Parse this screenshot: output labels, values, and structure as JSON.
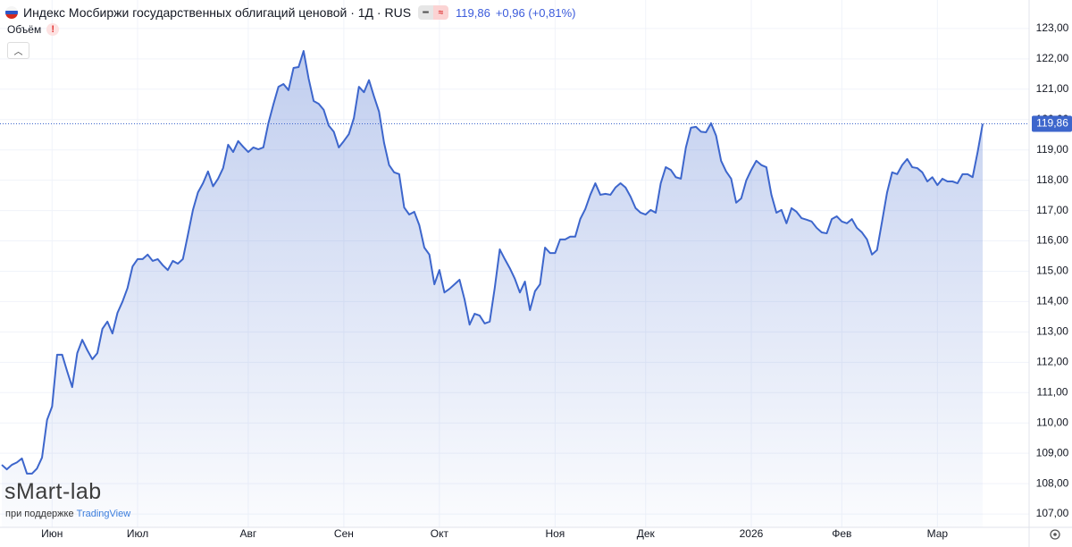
{
  "chart_data": {
    "type": "area",
    "title": "Индекс Мосбиржи государственных облигаций ценовой · 1Д · RUS",
    "change": "+0,96 (+0,81%)",
    "volume_label": "Объём",
    "volume_alert": "!",
    "watermark": "sMart-lab",
    "watermark_sub": "при поддержке",
    "watermark_brand": "TradingView",
    "color": "#3d66cc",
    "grid": true,
    "last_value": {
      "value": 119.86,
      "label": "119,86"
    },
    "ylim": [
      106.56,
      123.94
    ],
    "yticks": [
      {
        "value": 107,
        "label": "107,00"
      },
      {
        "value": 108,
        "label": "108,00"
      },
      {
        "value": 109,
        "label": "109,00"
      },
      {
        "value": 110,
        "label": "110,00"
      },
      {
        "value": 111,
        "label": "111,00"
      },
      {
        "value": 112,
        "label": "112,00"
      },
      {
        "value": 113,
        "label": "113,00"
      },
      {
        "value": 114,
        "label": "114,00"
      },
      {
        "value": 115,
        "label": "115,00"
      },
      {
        "value": 116,
        "label": "116,00"
      },
      {
        "value": 117,
        "label": "117,00"
      },
      {
        "value": 118,
        "label": "118,00"
      },
      {
        "value": 119,
        "label": "119,00"
      },
      {
        "value": 120,
        "label": "120,00"
      },
      {
        "value": 121,
        "label": "121,00"
      },
      {
        "value": 122,
        "label": "122,00"
      },
      {
        "value": 123,
        "label": "123,00"
      }
    ],
    "categories": [
      null,
      null,
      null,
      null,
      null,
      null,
      null,
      null,
      null,
      null,
      "Июн",
      null,
      null,
      null,
      null,
      null,
      null,
      null,
      null,
      null,
      null,
      null,
      null,
      null,
      null,
      null,
      null,
      "Июл",
      null,
      null,
      null,
      null,
      null,
      null,
      null,
      null,
      null,
      null,
      null,
      null,
      null,
      null,
      null,
      null,
      null,
      null,
      null,
      null,
      null,
      "Авг",
      null,
      null,
      null,
      null,
      null,
      null,
      null,
      null,
      null,
      null,
      null,
      null,
      null,
      null,
      null,
      null,
      null,
      null,
      "Сен",
      null,
      null,
      null,
      null,
      null,
      null,
      null,
      null,
      null,
      null,
      null,
      null,
      null,
      null,
      null,
      null,
      null,
      null,
      "Окт",
      null,
      null,
      null,
      null,
      null,
      null,
      null,
      null,
      null,
      null,
      null,
      null,
      null,
      null,
      null,
      null,
      null,
      null,
      null,
      null,
      null,
      null,
      "Ноя",
      null,
      null,
      null,
      null,
      null,
      null,
      null,
      null,
      null,
      null,
      null,
      null,
      null,
      null,
      null,
      null,
      null,
      "Дек",
      null,
      null,
      null,
      null,
      null,
      null,
      null,
      null,
      null,
      null,
      null,
      null,
      null,
      null,
      null,
      null,
      null,
      null,
      null,
      null,
      "2026",
      null,
      null,
      null,
      null,
      null,
      null,
      null,
      null,
      null,
      null,
      null,
      null,
      null,
      null,
      null,
      null,
      null,
      "Фев",
      null,
      null,
      null,
      null,
      null,
      null,
      null,
      null,
      null,
      null,
      null,
      null,
      null,
      null,
      null,
      null,
      null,
      null,
      "Мар",
      null,
      null,
      null,
      null,
      null,
      null,
      null,
      null,
      null
    ],
    "values": [
      108.62,
      108.47,
      108.62,
      108.7,
      108.83,
      108.33,
      108.33,
      108.5,
      108.86,
      110.1,
      110.54,
      112.25,
      112.25,
      111.7,
      111.18,
      112.3,
      112.74,
      112.4,
      112.1,
      112.3,
      113.1,
      113.34,
      112.95,
      113.63,
      114.0,
      114.45,
      115.16,
      115.4,
      115.4,
      115.55,
      115.34,
      115.4,
      115.2,
      115.04,
      115.34,
      115.25,
      115.4,
      116.2,
      117.02,
      117.6,
      117.9,
      118.29,
      117.8,
      118.05,
      118.4,
      119.17,
      118.93,
      119.29,
      119.1,
      118.93,
      119.08,
      119.02,
      119.08,
      119.88,
      120.5,
      121.08,
      121.17,
      120.97,
      121.7,
      121.73,
      122.26,
      121.35,
      120.61,
      120.52,
      120.32,
      119.8,
      119.6,
      119.08,
      119.29,
      119.52,
      120.05,
      121.08,
      120.9,
      121.3,
      120.76,
      120.26,
      119.23,
      118.5,
      118.26,
      118.2,
      117.1,
      116.87,
      116.96,
      116.52,
      115.78,
      115.55,
      114.57,
      115.04,
      114.3,
      114.42,
      114.57,
      114.72,
      114.07,
      113.24,
      113.6,
      113.54,
      113.28,
      113.34,
      114.45,
      115.72,
      115.4,
      115.1,
      114.75,
      114.3,
      114.66,
      113.72,
      114.34,
      114.57,
      115.78,
      115.6,
      115.6,
      116.05,
      116.05,
      116.14,
      116.14,
      116.72,
      117.05,
      117.52,
      117.9,
      117.52,
      117.55,
      117.52,
      117.76,
      117.9,
      117.76,
      117.46,
      117.08,
      116.93,
      116.87,
      117.02,
      116.93,
      117.9,
      118.43,
      118.34,
      118.1,
      118.05,
      119.08,
      119.73,
      119.76,
      119.6,
      119.58,
      119.88,
      119.47,
      118.64,
      118.29,
      118.05,
      117.26,
      117.4,
      117.99,
      118.34,
      118.64,
      118.5,
      118.43,
      117.52,
      116.93,
      117.02,
      116.58,
      117.08,
      116.96,
      116.75,
      116.7,
      116.64,
      116.43,
      116.28,
      116.25,
      116.72,
      116.81,
      116.64,
      116.58,
      116.72,
      116.43,
      116.28,
      116.05,
      115.55,
      115.7,
      116.64,
      117.6,
      118.26,
      118.2,
      118.5,
      118.7,
      118.43,
      118.4,
      118.26,
      117.96,
      118.1,
      117.84,
      118.05,
      117.96,
      117.96,
      117.9,
      118.2,
      118.2,
      118.1,
      118.93,
      119.86
    ]
  }
}
